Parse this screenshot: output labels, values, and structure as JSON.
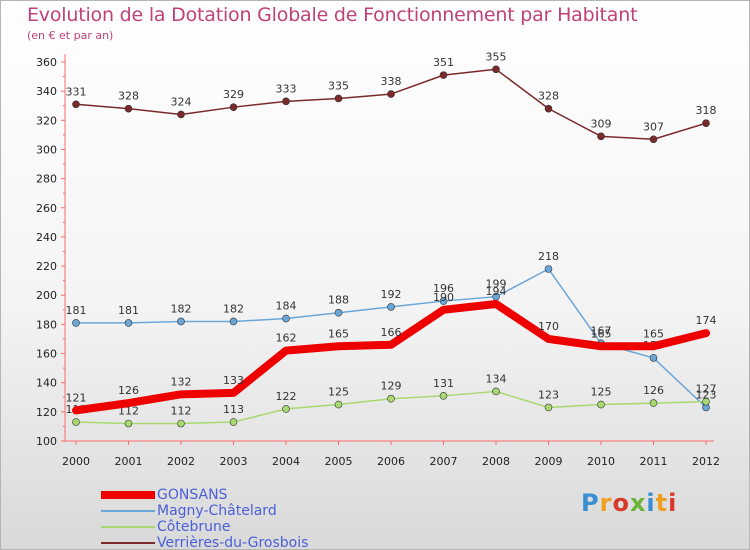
{
  "title": "Evolution de la Dotation Globale de Fonctionnement par Habitant",
  "subtitle": "(en € et par an)",
  "logo": "Proxiti",
  "chart_data": {
    "type": "line",
    "x": [
      2000,
      2001,
      2002,
      2003,
      2004,
      2005,
      2006,
      2007,
      2008,
      2009,
      2010,
      2011,
      2012
    ],
    "ylim": [
      100,
      360
    ],
    "yticks": [
      100,
      120,
      140,
      160,
      180,
      200,
      220,
      240,
      260,
      280,
      300,
      320,
      340,
      360
    ],
    "grid": false,
    "legend_position": "bottom-left",
    "series": [
      {
        "name": "GONSANS",
        "color": "#ee0000",
        "values": [
          121,
          126,
          132,
          133,
          162,
          165,
          166,
          190,
          194,
          170,
          165,
          165,
          174
        ]
      },
      {
        "name": "Magny-Châtelard",
        "color": "#6aa6d8",
        "values": [
          181,
          181,
          182,
          182,
          184,
          188,
          192,
          196,
          199,
          218,
          167,
          157,
          123
        ]
      },
      {
        "name": "Côtebrune",
        "color": "#a8d870",
        "values": [
          113,
          112,
          112,
          113,
          122,
          125,
          129,
          131,
          134,
          123,
          125,
          126,
          127
        ]
      },
      {
        "name": "Verrières-du-Grosbois",
        "color": "#7a2a2a",
        "values": [
          331,
          328,
          324,
          329,
          333,
          335,
          338,
          351,
          355,
          328,
          309,
          307,
          318
        ]
      }
    ]
  }
}
